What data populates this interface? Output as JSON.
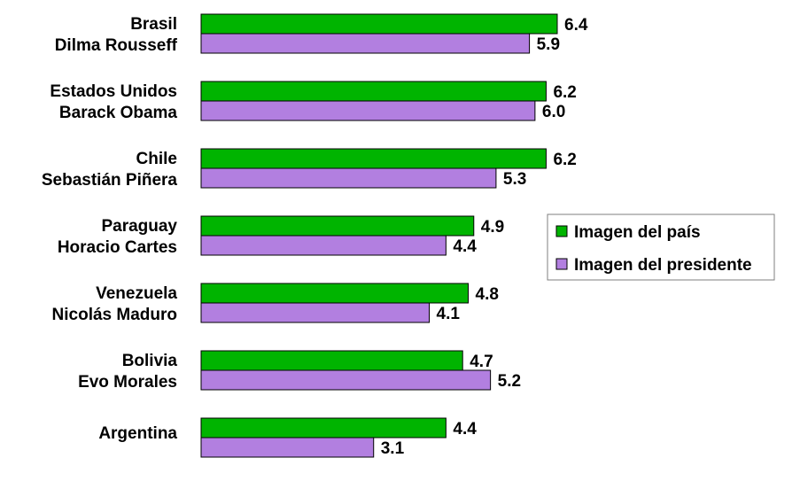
{
  "chart_data": {
    "type": "bar",
    "orientation": "horizontal",
    "groups": [
      {
        "country": "Brasil",
        "president": "Dilma Rousseff",
        "country_value": 6.4,
        "president_value": 5.9,
        "country_label": "6.4",
        "president_label": "5.9"
      },
      {
        "country": "Estados Unidos",
        "president": "Barack Obama",
        "country_value": 6.2,
        "president_value": 6.0,
        "country_label": "6.2",
        "president_label": "6.0"
      },
      {
        "country": "Chile",
        "president": "Sebastián Piñera",
        "country_value": 6.2,
        "president_value": 5.3,
        "country_label": "6.2",
        "president_label": "5.3"
      },
      {
        "country": "Paraguay",
        "president": "Horacio Cartes",
        "country_value": 4.9,
        "president_value": 4.4,
        "country_label": "4.9",
        "president_label": "4.4"
      },
      {
        "country": "Venezuela",
        "president": "Nicolás Maduro",
        "country_value": 4.8,
        "president_value": 4.1,
        "country_label": "4.8",
        "president_label": "4.1"
      },
      {
        "country": "Bolivia",
        "president": "Evo Morales",
        "country_value": 4.7,
        "president_value": 5.2,
        "country_label": "4.7",
        "president_label": "5.2"
      },
      {
        "country": "Argentina",
        "president": "",
        "country_value": 4.4,
        "president_value": 3.1,
        "country_label": "4.4",
        "president_label": "3.1"
      }
    ],
    "series": [
      {
        "name": "Imagen del país",
        "color": "#00B400"
      },
      {
        "name": "Imagen del presidente",
        "color": "#B27FE0"
      }
    ],
    "xlim": [
      0,
      6.4
    ],
    "grid": false,
    "legend_position": "right"
  }
}
